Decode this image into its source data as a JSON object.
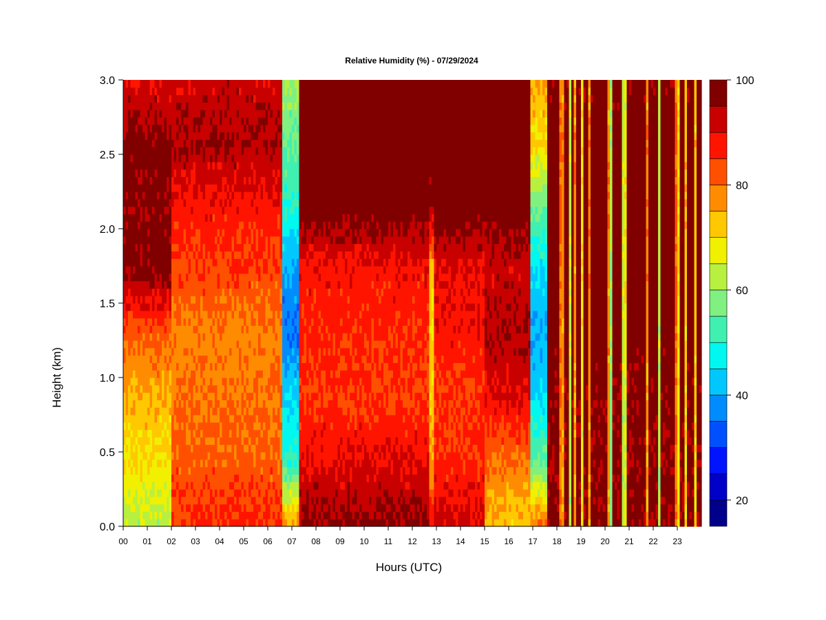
{
  "chart_data": {
    "type": "heatmap",
    "title": "Relative Humidity (%) - 07/29/2024",
    "xlabel": "Hours (UTC)",
    "ylabel": "Height (km)",
    "x_ticks": [
      "00",
      "01",
      "02",
      "03",
      "04",
      "05",
      "06",
      "07",
      "08",
      "09",
      "10",
      "11",
      "12",
      "13",
      "14",
      "15",
      "16",
      "17",
      "18",
      "19",
      "20",
      "21",
      "22",
      "23"
    ],
    "y_ticks": [
      "0.0",
      "0.5",
      "1.0",
      "1.5",
      "2.0",
      "2.5",
      "3.0"
    ],
    "xlim": [
      0,
      24
    ],
    "ylim": [
      0,
      3
    ],
    "colorbar": {
      "range": [
        15,
        100
      ],
      "tick_values": [
        20,
        40,
        60,
        80,
        100
      ],
      "tick_labels": [
        "20",
        "40",
        "60",
        "80",
        "100"
      ],
      "levels": [
        15,
        20,
        25,
        30,
        35,
        40,
        45,
        50,
        55,
        60,
        65,
        70,
        75,
        80,
        85,
        90,
        95,
        100
      ],
      "colors": [
        "#00008b",
        "#0000c8",
        "#0014ff",
        "#0050ff",
        "#008cff",
        "#00c8ff",
        "#00f8f0",
        "#40f0b0",
        "#80f080",
        "#b8f040",
        "#f0f000",
        "#ffc800",
        "#ff8c00",
        "#ff5000",
        "#ff1400",
        "#c80000",
        "#800000"
      ]
    },
    "time_segments": [
      {
        "t0": 0.0,
        "t1": 2.0,
        "rh": [
          62,
          70,
          74,
          82,
          97,
          97,
          98,
          90
        ]
      },
      {
        "t0": 2.0,
        "t1": 6.6,
        "rh": [
          86,
          82,
          80,
          78,
          84,
          88,
          95,
          92
        ]
      },
      {
        "t0": 6.6,
        "t1": 7.3,
        "rh": [
          78,
          50,
          45,
          35,
          40,
          50,
          55,
          60
        ]
      },
      {
        "t0": 7.3,
        "t1": 12.7,
        "rh": [
          97,
          90,
          85,
          86,
          88,
          99,
          99,
          99
        ]
      },
      {
        "t0": 12.7,
        "t1": 12.85,
        "rh": [
          90,
          75,
          72,
          70,
          72,
          95,
          99,
          99
        ]
      },
      {
        "t0": 12.85,
        "t1": 15.0,
        "rh": [
          92,
          86,
          85,
          88,
          90,
          99,
          99,
          99
        ]
      },
      {
        "t0": 15.0,
        "t1": 16.9,
        "rh": [
          72,
          80,
          90,
          95,
          92,
          99,
          99,
          99
        ]
      },
      {
        "t0": 16.9,
        "t1": 17.6,
        "rh": [
          80,
          55,
          45,
          40,
          45,
          55,
          70,
          75
        ]
      },
      {
        "t0": 17.6,
        "t1": 24.0,
        "rh": [
          97,
          96,
          97,
          98,
          98,
          99,
          99,
          97
        ]
      }
    ]
  }
}
